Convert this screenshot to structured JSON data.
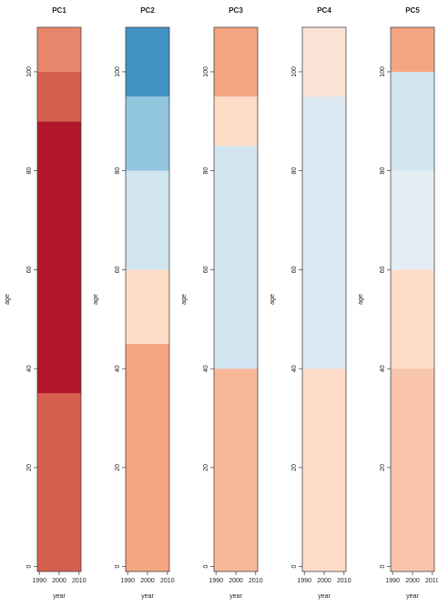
{
  "chart_data": [
    {
      "type": "heatmap",
      "title": "PC1",
      "xlabel": "year",
      "ylabel": "age",
      "xlim": [
        1989,
        2011
      ],
      "ylim": [
        -1,
        109
      ],
      "xticks": [
        1990,
        2000,
        2010
      ],
      "yticks": [
        0,
        20,
        40,
        60,
        80,
        100
      ],
      "bins": [
        -1,
        35,
        90,
        100,
        109
      ],
      "colors": [
        "#d6604d",
        "#b2182b",
        "#d6604d",
        "#e8866b"
      ]
    },
    {
      "type": "heatmap",
      "title": "PC2",
      "xlabel": "year",
      "ylabel": "age",
      "xlim": [
        1989,
        2011
      ],
      "ylim": [
        -1,
        109
      ],
      "xticks": [
        1990,
        2000,
        2010
      ],
      "yticks": [
        0,
        20,
        40,
        60,
        80,
        100
      ],
      "bins": [
        -1,
        45,
        60,
        80,
        95,
        109
      ],
      "colors": [
        "#f4a582",
        "#fddbc7",
        "#d1e5f0",
        "#92c5de",
        "#4393c3"
      ]
    },
    {
      "type": "heatmap",
      "title": "PC3",
      "xlabel": "year",
      "ylabel": "age",
      "xlim": [
        1989,
        2011
      ],
      "ylim": [
        -1,
        109
      ],
      "xticks": [
        1990,
        2000,
        2010
      ],
      "yticks": [
        0,
        20,
        40,
        60,
        80,
        100
      ],
      "bins": [
        -1,
        40,
        85,
        95,
        109
      ],
      "colors": [
        "#f7b799",
        "#d1e5f0",
        "#fddbc7",
        "#f4a582"
      ]
    },
    {
      "type": "heatmap",
      "title": "PC4",
      "xlabel": "year",
      "ylabel": "age",
      "xlim": [
        1989,
        2011
      ],
      "ylim": [
        -1,
        109
      ],
      "xticks": [
        1990,
        2000,
        2010
      ],
      "yticks": [
        0,
        20,
        40,
        60,
        80,
        100
      ],
      "bins": [
        -1,
        40,
        95,
        109
      ],
      "colors": [
        "#fddbc7",
        "#dbe8f1",
        "#fbe2d5"
      ]
    },
    {
      "type": "heatmap",
      "title": "PC5",
      "xlabel": "year",
      "ylabel": "age",
      "xlim": [
        1989,
        2011
      ],
      "ylim": [
        -1,
        109
      ],
      "xticks": [
        1990,
        2000,
        2010
      ],
      "yticks": [
        0,
        20,
        40,
        60,
        80,
        100
      ],
      "bins": [
        -1,
        40,
        60,
        80,
        100,
        109
      ],
      "colors": [
        "#f7c4a9",
        "#fddbc7",
        "#e4edf4",
        "#d1e5f0",
        "#f4a582"
      ]
    }
  ]
}
